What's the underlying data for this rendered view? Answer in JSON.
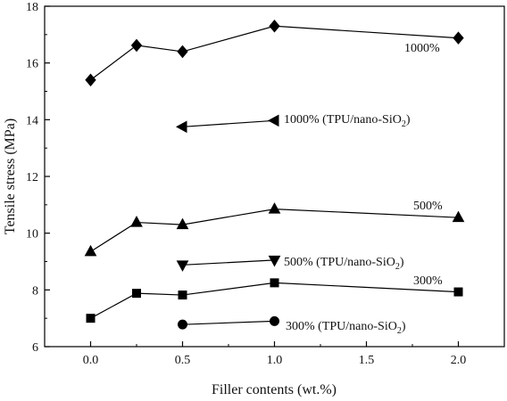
{
  "chart_data": {
    "type": "line",
    "xlabel": "Filler contents (wt.%)",
    "ylabel": "Tensile stress (MPa)",
    "xlim": [
      -0.25,
      2.25
    ],
    "ylim": [
      6,
      18
    ],
    "x_ticks": [
      "0.0",
      "0.5",
      "1.0",
      "1.5",
      "2.0"
    ],
    "y_ticks": [
      "6",
      "8",
      "10",
      "12",
      "14",
      "16",
      "18"
    ],
    "grid": false,
    "legend": "none",
    "series": [
      {
        "label_text": "1000%",
        "marker": "diamond",
        "color": "#000000",
        "x": [
          0.0,
          0.25,
          0.5,
          1.0,
          2.0
        ],
        "y": [
          15.4,
          16.62,
          16.4,
          17.3,
          16.88
        ]
      },
      {
        "label_text": "500%",
        "marker": "triangle-up",
        "color": "#000000",
        "x": [
          0.0,
          0.25,
          0.5,
          1.0,
          2.0
        ],
        "y": [
          9.35,
          10.38,
          10.3,
          10.85,
          10.55
        ]
      },
      {
        "label_text": "300%",
        "marker": "square",
        "color": "#000000",
        "x": [
          0.0,
          0.25,
          0.5,
          1.0,
          2.0
        ],
        "y": [
          7.0,
          7.88,
          7.82,
          8.25,
          7.93
        ]
      },
      {
        "label_text": "1000% (TPU/nano-SiO",
        "label_sub": "2",
        "label_close": ")",
        "marker": "triangle-left",
        "color": "#000000",
        "x": [
          0.5,
          1.0
        ],
        "y": [
          13.75,
          13.97
        ]
      },
      {
        "label_text": "500% (TPU/nano-SiO",
        "label_sub": "2",
        "label_close": ")",
        "marker": "triangle-down",
        "color": "#000000",
        "x": [
          0.5,
          1.0
        ],
        "y": [
          8.88,
          9.05
        ]
      },
      {
        "label_text": "300% (TPU/nano-SiO",
        "label_sub": "2",
        "label_close": ")",
        "marker": "circle",
        "color": "#000000",
        "x": [
          0.5,
          1.0
        ],
        "y": [
          6.78,
          6.9
        ]
      }
    ]
  }
}
